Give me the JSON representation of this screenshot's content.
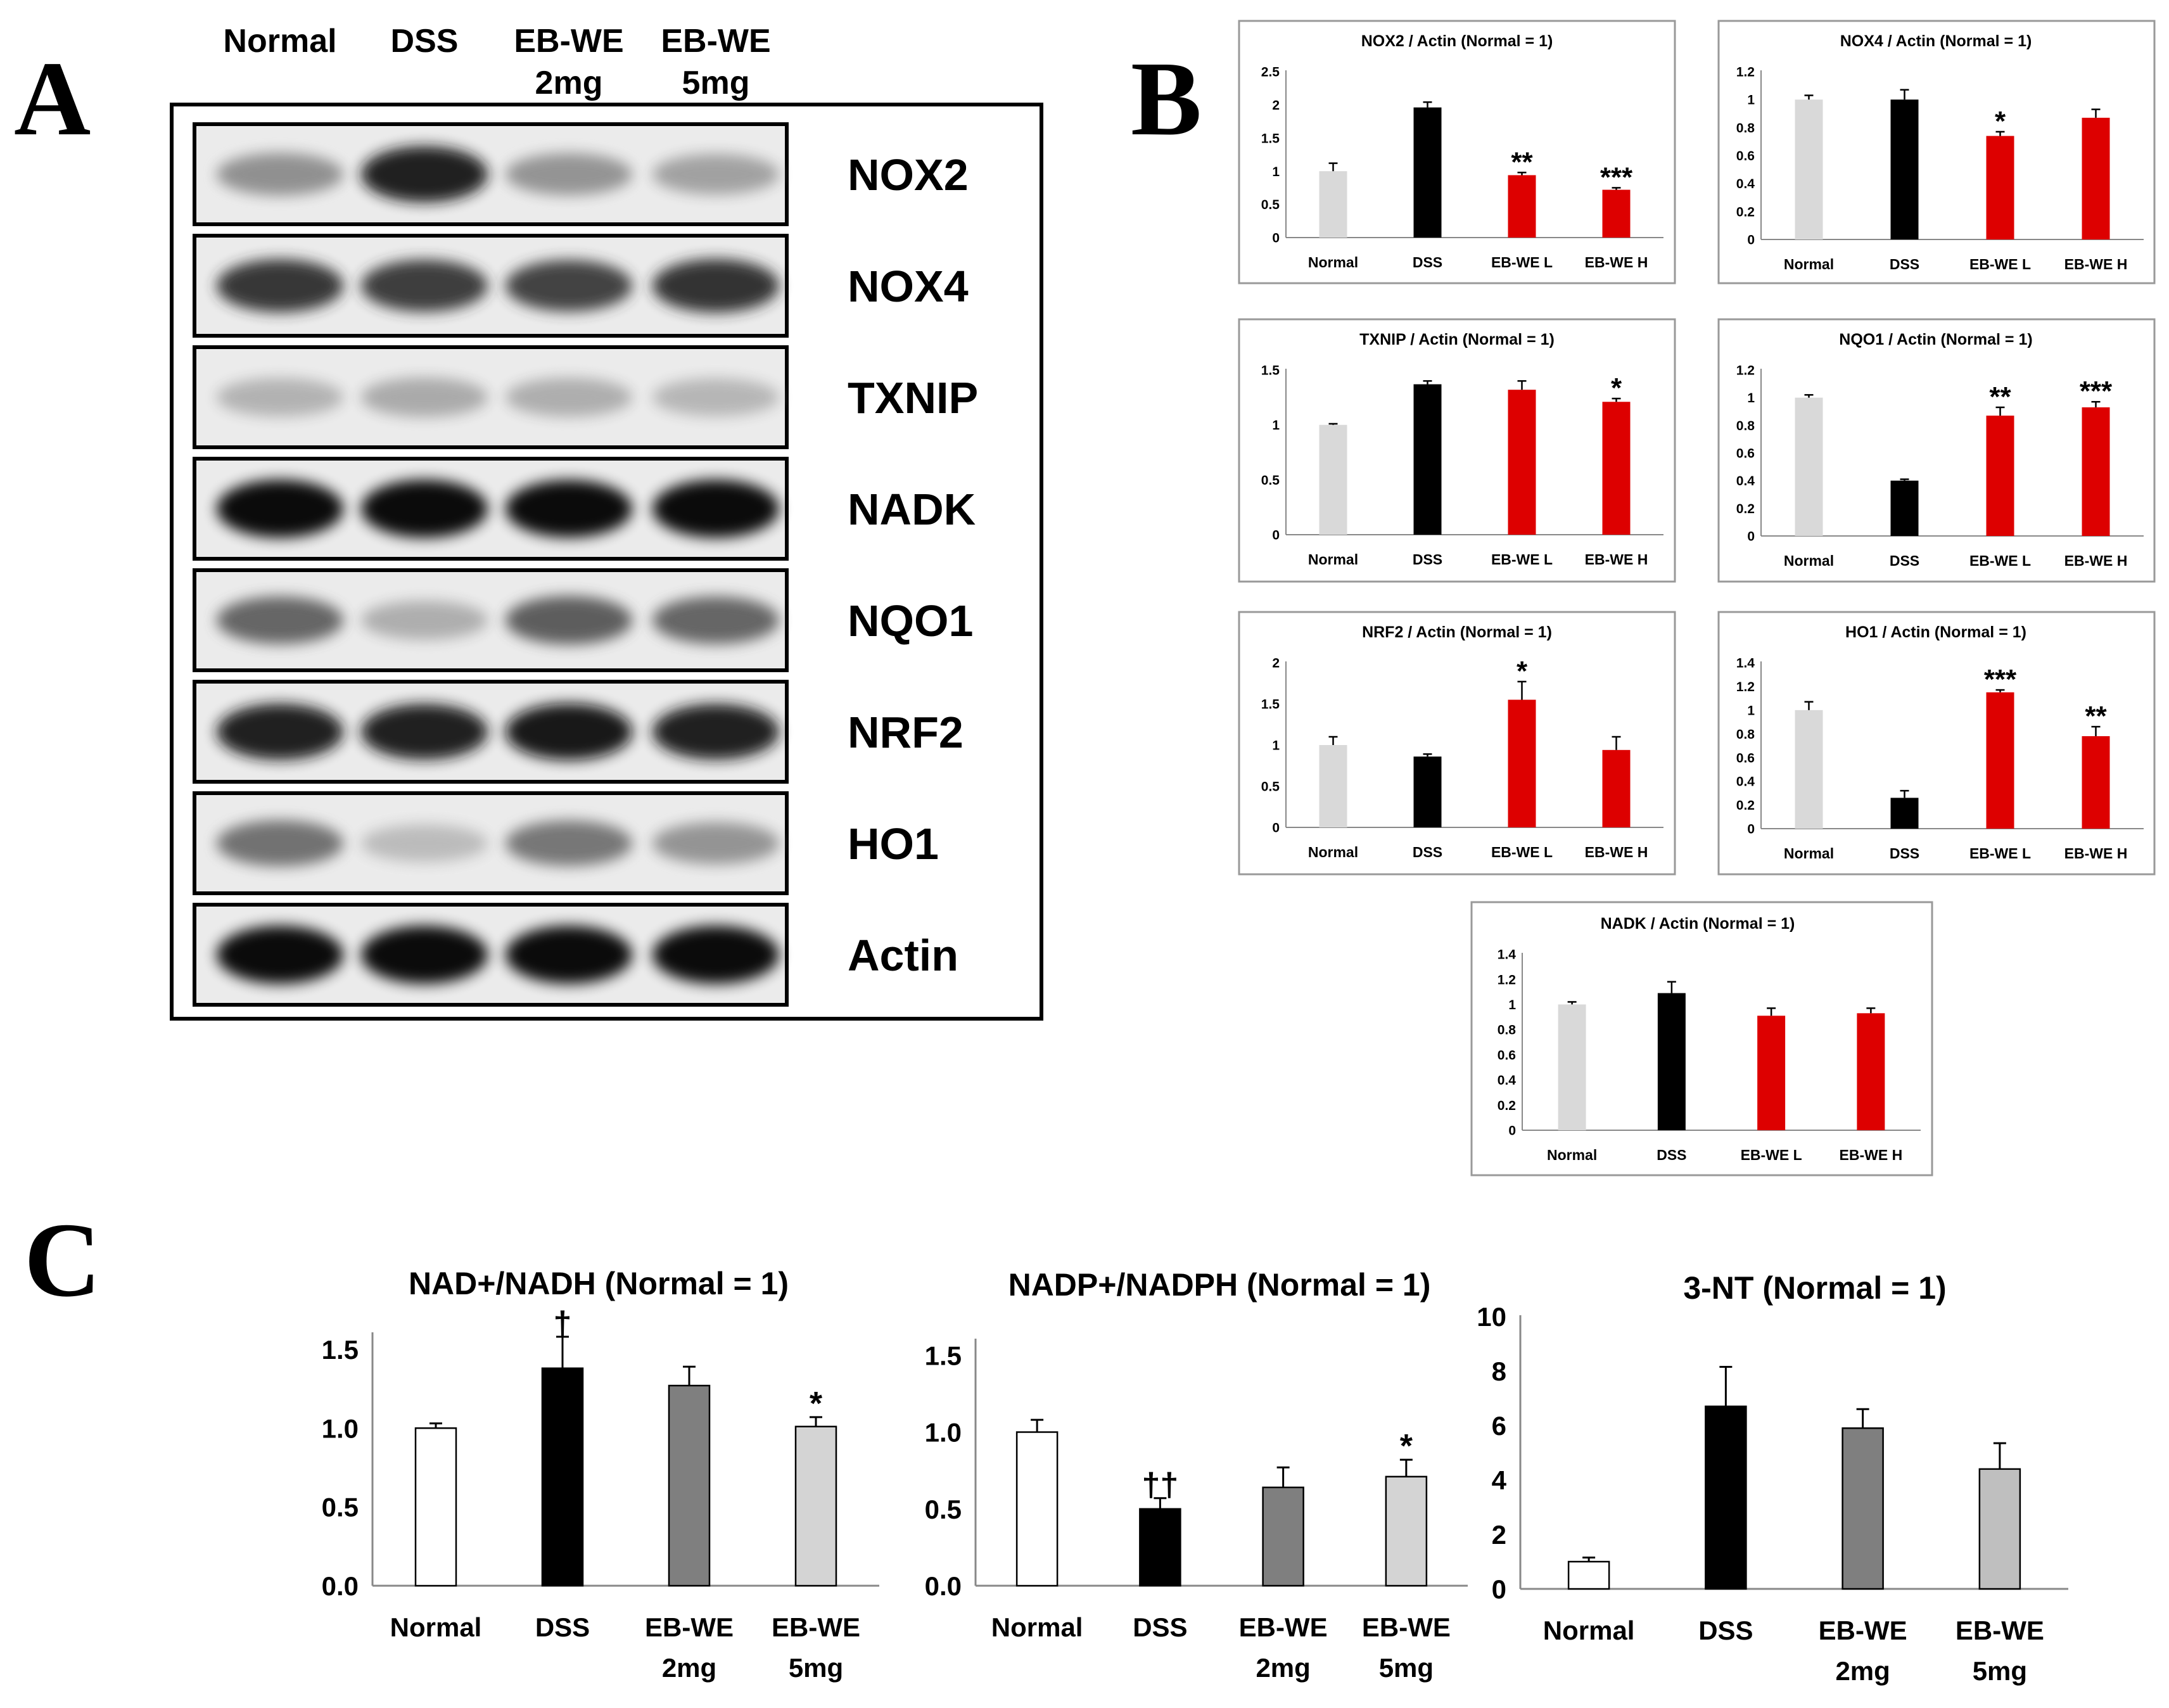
{
  "panels": {
    "a": "A",
    "b": "B",
    "c": "C"
  },
  "western_blot": {
    "lanes": [
      [
        "Normal"
      ],
      [
        "DSS"
      ],
      [
        "EB-WE",
        "2mg"
      ],
      [
        "EB-WE",
        "5mg"
      ]
    ],
    "proteins": [
      "NOX2",
      "NOX4",
      "TXNIP",
      "NADK",
      "NQO1",
      "NRF2",
      "HO1",
      "Actin"
    ],
    "band_intensity": [
      [
        0.38,
        0.92,
        0.36,
        0.3
      ],
      [
        0.8,
        0.76,
        0.74,
        0.82
      ],
      [
        0.22,
        0.26,
        0.24,
        0.2
      ],
      [
        1.0,
        1.0,
        0.98,
        1.0
      ],
      [
        0.58,
        0.24,
        0.62,
        0.58
      ],
      [
        0.92,
        0.9,
        0.94,
        0.9
      ],
      [
        0.52,
        0.18,
        0.5,
        0.36
      ],
      [
        1.0,
        1.0,
        1.0,
        1.0
      ]
    ]
  },
  "colors": {
    "normal_b": "#d9d9d9",
    "dss": "#000000",
    "ebwe_b": "#dd0000",
    "normal_c": "#ffffff",
    "ebwe2_c": "#7f7f7f",
    "ebwe5_c": "#d4d4d4",
    "ebwe5_3nt": "#bfbfbf",
    "box_border": "#999999",
    "axis": "#888888"
  },
  "chart_data": [
    {
      "panel": "B",
      "type": "bar",
      "title": "NOX2 / Actin (Normal = 1)",
      "categories": [
        "Normal",
        "DSS",
        "EB-WE L",
        "EB-WE H"
      ],
      "values": [
        1.0,
        1.96,
        0.94,
        0.72
      ],
      "errors": [
        0.12,
        0.08,
        0.04,
        0.03
      ],
      "annotations": [
        "",
        "",
        "**",
        "***"
      ],
      "ylim": [
        0,
        2.5
      ],
      "yticks": [
        0,
        0.5,
        1,
        1.5,
        2,
        2.5
      ],
      "ytick_labels": [
        "0",
        "0.5",
        "1",
        "1.5",
        "2",
        "2.5"
      ]
    },
    {
      "panel": "B",
      "type": "bar",
      "title": "NOX4 / Actin (Normal = 1)",
      "categories": [
        "Normal",
        "DSS",
        "EB-WE L",
        "EB-WE H"
      ],
      "values": [
        1.0,
        1.0,
        0.74,
        0.87
      ],
      "errors": [
        0.03,
        0.07,
        0.03,
        0.06
      ],
      "annotations": [
        "",
        "",
        "*",
        ""
      ],
      "ylim": [
        0,
        1.2
      ],
      "yticks": [
        0,
        0.2,
        0.4,
        0.6,
        0.8,
        1,
        1.2
      ],
      "ytick_labels": [
        "0",
        "0.2",
        "0.4",
        "0.6",
        "0.8",
        "1",
        "1.2"
      ]
    },
    {
      "panel": "B",
      "type": "bar",
      "title": "TXNIP / Actin (Normal = 1)",
      "categories": [
        "Normal",
        "DSS",
        "EB-WE L",
        "EB-WE H"
      ],
      "values": [
        1.0,
        1.37,
        1.32,
        1.21
      ],
      "errors": [
        0.01,
        0.03,
        0.08,
        0.03
      ],
      "annotations": [
        "",
        "",
        "",
        "*"
      ],
      "ylim": [
        0,
        1.5
      ],
      "yticks": [
        0,
        0.5,
        1,
        1.5
      ],
      "ytick_labels": [
        "0",
        "0.5",
        "1",
        "1.5"
      ]
    },
    {
      "panel": "B",
      "type": "bar",
      "title": "NQO1 / Actin (Normal = 1)",
      "categories": [
        "Normal",
        "DSS",
        "EB-WE L",
        "EB-WE H"
      ],
      "values": [
        1.0,
        0.4,
        0.87,
        0.93
      ],
      "errors": [
        0.02,
        0.01,
        0.06,
        0.04
      ],
      "annotations": [
        "",
        "",
        "**",
        "***"
      ],
      "ylim": [
        0,
        1.2
      ],
      "yticks": [
        0,
        0.2,
        0.4,
        0.6,
        0.8,
        1,
        1.2
      ],
      "ytick_labels": [
        "0",
        "0.2",
        "0.4",
        "0.6",
        "0.8",
        "1",
        "1.2"
      ]
    },
    {
      "panel": "B",
      "type": "bar",
      "title": "NRF2 / Actin (Normal = 1)",
      "categories": [
        "Normal",
        "DSS",
        "EB-WE L",
        "EB-WE H"
      ],
      "values": [
        1.0,
        0.86,
        1.55,
        0.94
      ],
      "errors": [
        0.1,
        0.03,
        0.22,
        0.16
      ],
      "annotations": [
        "",
        "",
        "*",
        ""
      ],
      "ylim": [
        0,
        2
      ],
      "yticks": [
        0,
        0.5,
        1,
        1.5,
        2
      ],
      "ytick_labels": [
        "0",
        "0.5",
        "1",
        "1.5",
        "2"
      ]
    },
    {
      "panel": "B",
      "type": "bar",
      "title": "HO1 / Actin (Normal = 1)",
      "categories": [
        "Normal",
        "DSS",
        "EB-WE L",
        "EB-WE H"
      ],
      "values": [
        1.0,
        0.26,
        1.15,
        0.78
      ],
      "errors": [
        0.07,
        0.06,
        0.02,
        0.08
      ],
      "annotations": [
        "",
        "",
        "***",
        "**"
      ],
      "ylim": [
        0,
        1.4
      ],
      "yticks": [
        0,
        0.2,
        0.4,
        0.6,
        0.8,
        1,
        1.2,
        1.4
      ],
      "ytick_labels": [
        "0",
        "0.2",
        "0.4",
        "0.6",
        "0.8",
        "1",
        "1.2",
        "1.4"
      ]
    },
    {
      "panel": "B",
      "type": "bar",
      "title": "NADK / Actin (Normal = 1)",
      "categories": [
        "Normal",
        "DSS",
        "EB-WE L",
        "EB-WE H"
      ],
      "values": [
        1.0,
        1.09,
        0.91,
        0.93
      ],
      "errors": [
        0.02,
        0.09,
        0.06,
        0.04
      ],
      "annotations": [
        "",
        "",
        "",
        ""
      ],
      "ylim": [
        0,
        1.4
      ],
      "yticks": [
        0,
        0.2,
        0.4,
        0.6,
        0.8,
        1,
        1.2,
        1.4
      ],
      "ytick_labels": [
        "0",
        "0.2",
        "0.4",
        "0.6",
        "0.8",
        "1",
        "1.2",
        "1.4"
      ]
    },
    {
      "panel": "C",
      "type": "bar",
      "title": "NAD+/NADH (Normal = 1)",
      "categories": [
        [
          "Normal"
        ],
        [
          "DSS"
        ],
        [
          "EB-WE",
          "2mg"
        ],
        [
          "EB-WE",
          "5mg"
        ]
      ],
      "values": [
        1.0,
        1.38,
        1.27,
        1.01
      ],
      "errors": [
        0.03,
        0.2,
        0.12,
        0.06
      ],
      "annotations": [
        "",
        "†",
        "",
        "*"
      ],
      "ylim": [
        0,
        1.6
      ],
      "yticks": [
        0,
        0.5,
        1,
        1.5
      ],
      "ytick_labels": [
        "0.0",
        "0.5",
        "1.0",
        "1.5"
      ]
    },
    {
      "panel": "C",
      "type": "bar",
      "title": "NADP+/NADPH (Normal = 1)",
      "categories": [
        [
          "Normal"
        ],
        [
          "DSS"
        ],
        [
          "EB-WE",
          "2mg"
        ],
        [
          "EB-WE",
          "5mg"
        ]
      ],
      "values": [
        1.0,
        0.5,
        0.64,
        0.71
      ],
      "errors": [
        0.08,
        0.07,
        0.13,
        0.11
      ],
      "annotations": [
        "",
        "††",
        "",
        "*"
      ],
      "ylim": [
        0,
        1.6
      ],
      "yticks": [
        0,
        0.5,
        1,
        1.5
      ],
      "ytick_labels": [
        "0.0",
        "0.5",
        "1.0",
        "1.5"
      ]
    },
    {
      "panel": "C",
      "type": "bar",
      "title": "3-NT (Normal = 1)",
      "categories": [
        [
          "Normal"
        ],
        [
          "DSS"
        ],
        [
          "EB-WE",
          "2mg"
        ],
        [
          "EB-WE",
          "5mg"
        ]
      ],
      "values": [
        1.0,
        6.7,
        5.9,
        4.4
      ],
      "errors": [
        0.15,
        1.45,
        0.7,
        0.95
      ],
      "annotations": [
        "",
        "",
        "",
        ""
      ],
      "ylim": [
        0,
        10
      ],
      "yticks": [
        0,
        2,
        4,
        6,
        8,
        10
      ],
      "ytick_labels": [
        "0",
        "2",
        "4",
        "6",
        "8",
        "10"
      ]
    }
  ]
}
